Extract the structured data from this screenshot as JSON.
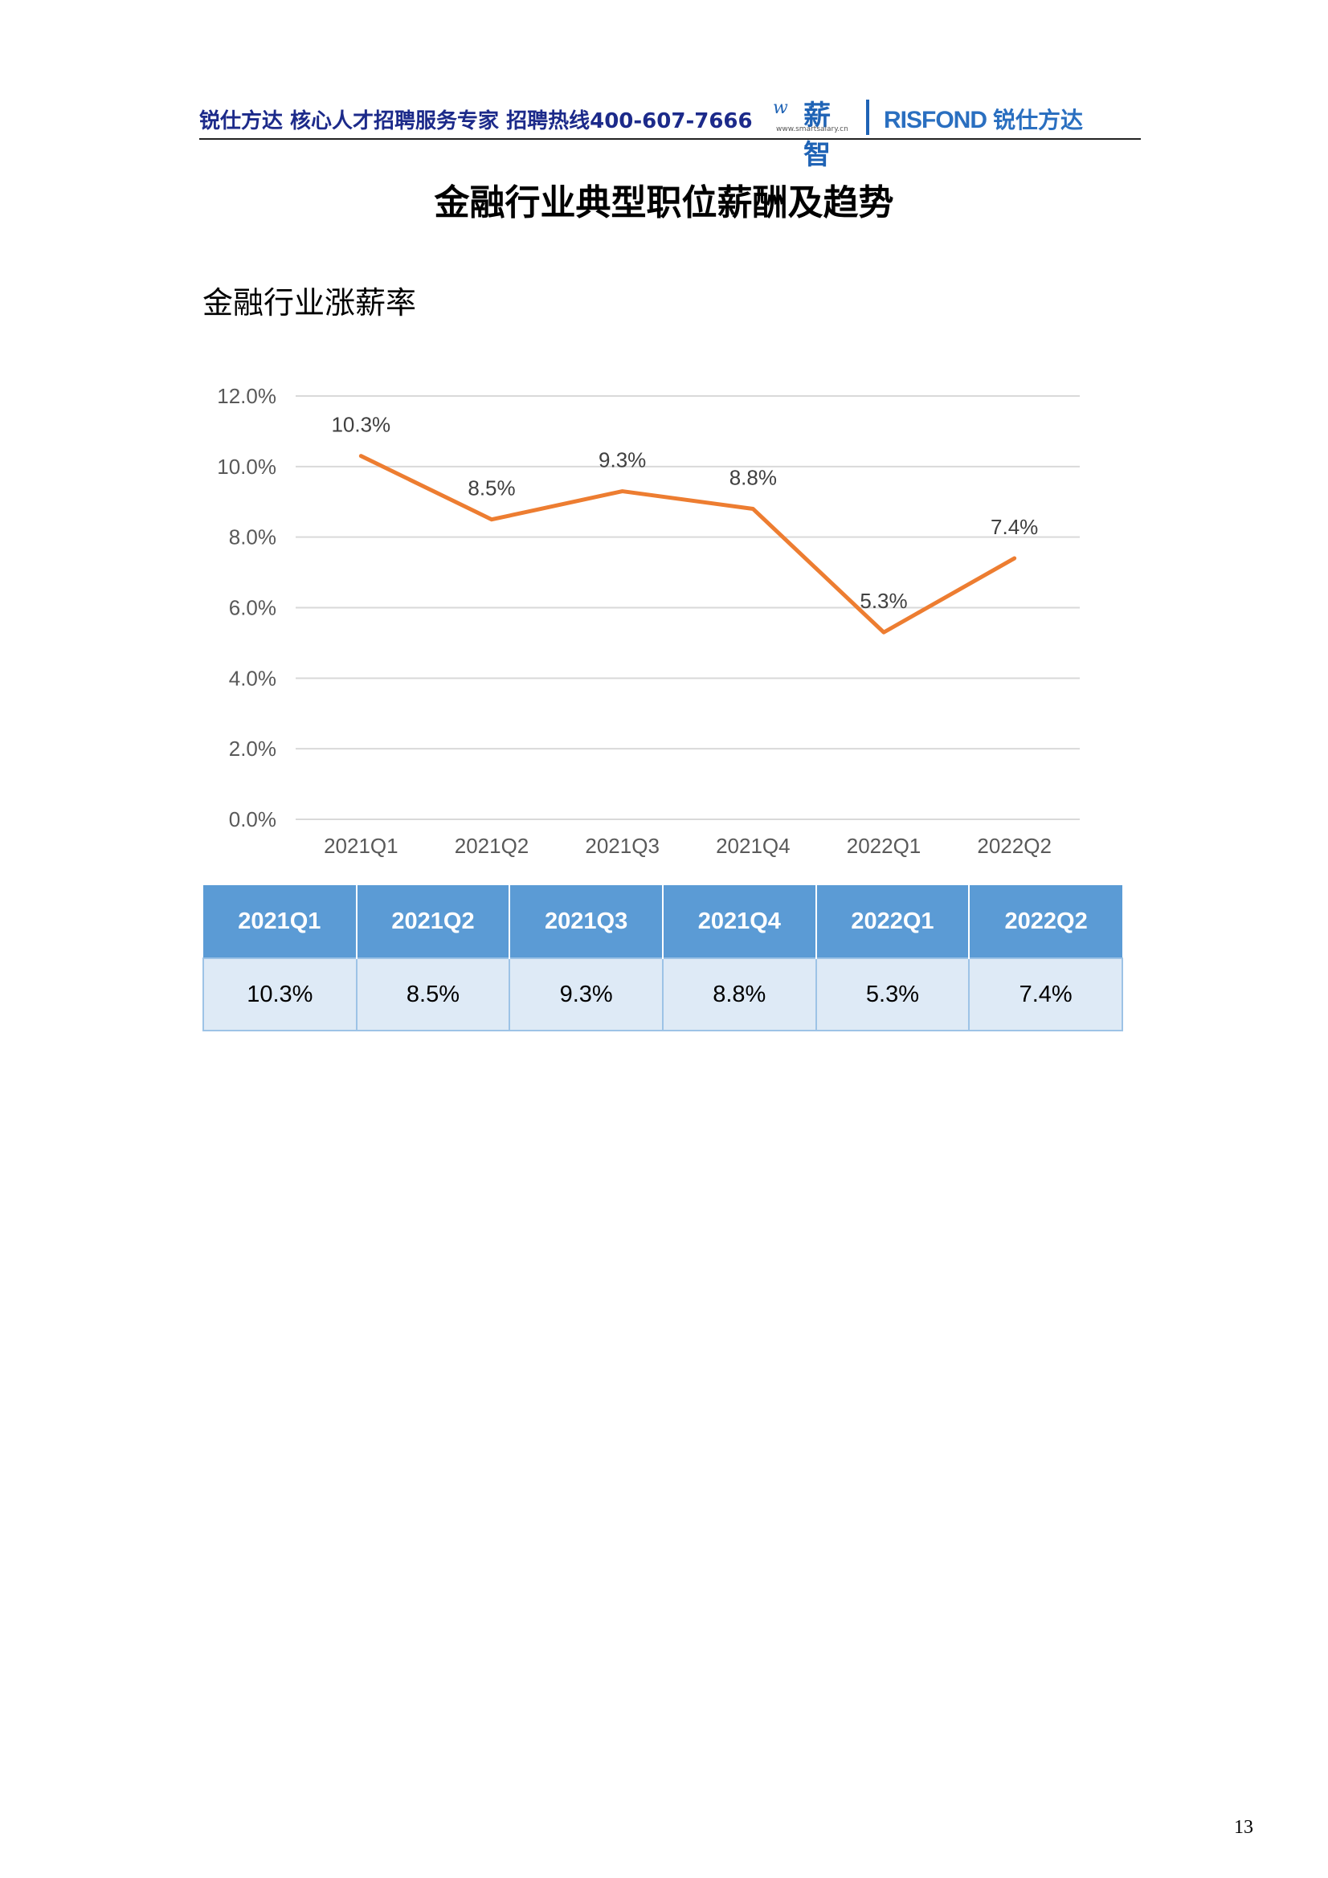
{
  "header": {
    "tagline": "锐仕方达  核心人才招聘服务专家  招聘热线400-607-7666",
    "logo_xinzhi": "薪智",
    "logo_xinzhi_url": "www.smartsalary.cn",
    "logo_risfond_en": "RISFOND",
    "logo_risfond_cn": "锐仕方达"
  },
  "page": {
    "title": "金融行业典型职位薪酬及趋势",
    "number": "13"
  },
  "chart_data": {
    "type": "line",
    "title": "金融行业涨薪率",
    "categories": [
      "2021Q1",
      "2021Q2",
      "2021Q3",
      "2021Q4",
      "2022Q1",
      "2022Q2"
    ],
    "values": [
      10.3,
      8.5,
      9.3,
      8.8,
      5.3,
      7.4
    ],
    "value_labels": [
      "10.3%",
      "8.5%",
      "9.3%",
      "8.8%",
      "5.3%",
      "7.4%"
    ],
    "ylim": [
      0,
      12
    ],
    "yticks": [
      0,
      2,
      4,
      6,
      8,
      10,
      12
    ],
    "ytick_labels": [
      "0.0%",
      "2.0%",
      "4.0%",
      "6.0%",
      "8.0%",
      "10.0%",
      "12.0%"
    ],
    "line_color": "#ed7d31",
    "grid": true
  },
  "table": {
    "headers": [
      "2021Q1",
      "2021Q2",
      "2021Q3",
      "2021Q4",
      "2022Q1",
      "2022Q2"
    ],
    "values": [
      "10.3%",
      "8.5%",
      "9.3%",
      "8.8%",
      "5.3%",
      "7.4%"
    ]
  }
}
